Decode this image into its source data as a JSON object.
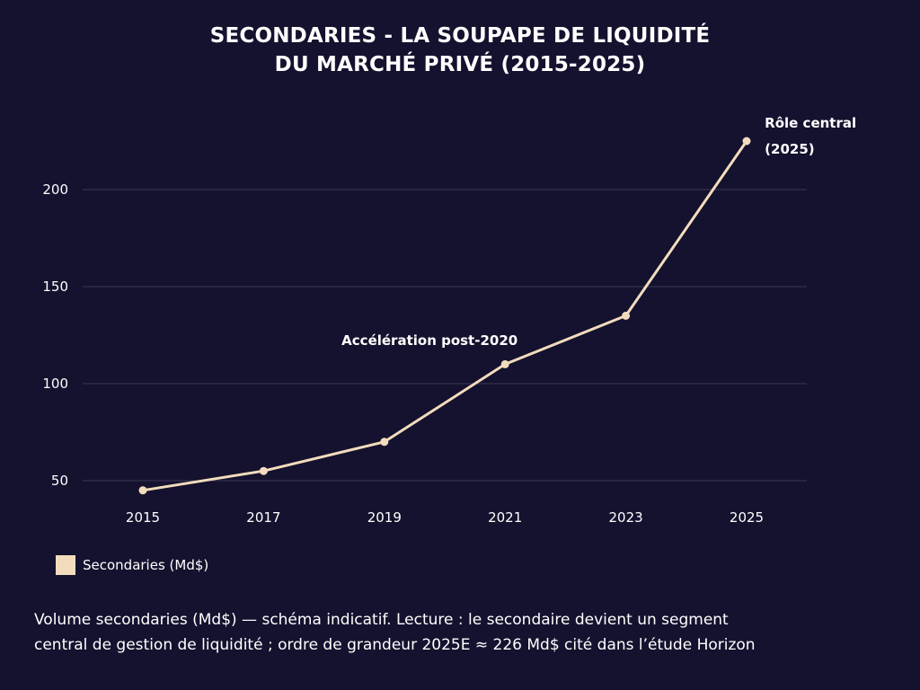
{
  "title_lines": [
    "SECONDARIES - LA SOUPAPE DE LIQUIDITÉ",
    "DU MARCHÉ PRIVÉ (2015-2025)"
  ],
  "colors": {
    "background": "#14122e",
    "line": "#f3dcbd",
    "grid": "#3a3856",
    "text": "#ffffff"
  },
  "chart_data": {
    "type": "line",
    "x": [
      2015,
      2017,
      2019,
      2021,
      2023,
      2025
    ],
    "x_tick_labels": [
      "2015",
      "2017",
      "2019",
      "2021",
      "2023",
      "2025"
    ],
    "y_ticks": [
      50,
      100,
      150,
      200
    ],
    "y_tick_labels": [
      "50",
      "100",
      "150",
      "200"
    ],
    "ylim": [
      40,
      228
    ],
    "series": [
      {
        "name": "Secondaries (Md$)",
        "values": [
          45,
          55,
          70,
          110,
          135,
          225
        ]
      }
    ],
    "annotations": [
      {
        "lines": [
          "Accélération post-2020"
        ],
        "x": 2019.75,
        "y": 120
      },
      {
        "lines": [
          "Rôle central",
          "(2025)"
        ],
        "x": 2025.3,
        "y": 232
      }
    ],
    "grid": "horizontal",
    "legend_position": "bottom-left"
  },
  "legend": {
    "label": "Secondaries (Md$)"
  },
  "caption_lines": [
    "Volume secondaries (Md$) — schéma indicatif. Lecture : le secondaire devient un segment",
    "central de gestion de liquidité ; ordre de grandeur 2025E ≈ 226 Md$ cité dans l’étude Horizon"
  ]
}
